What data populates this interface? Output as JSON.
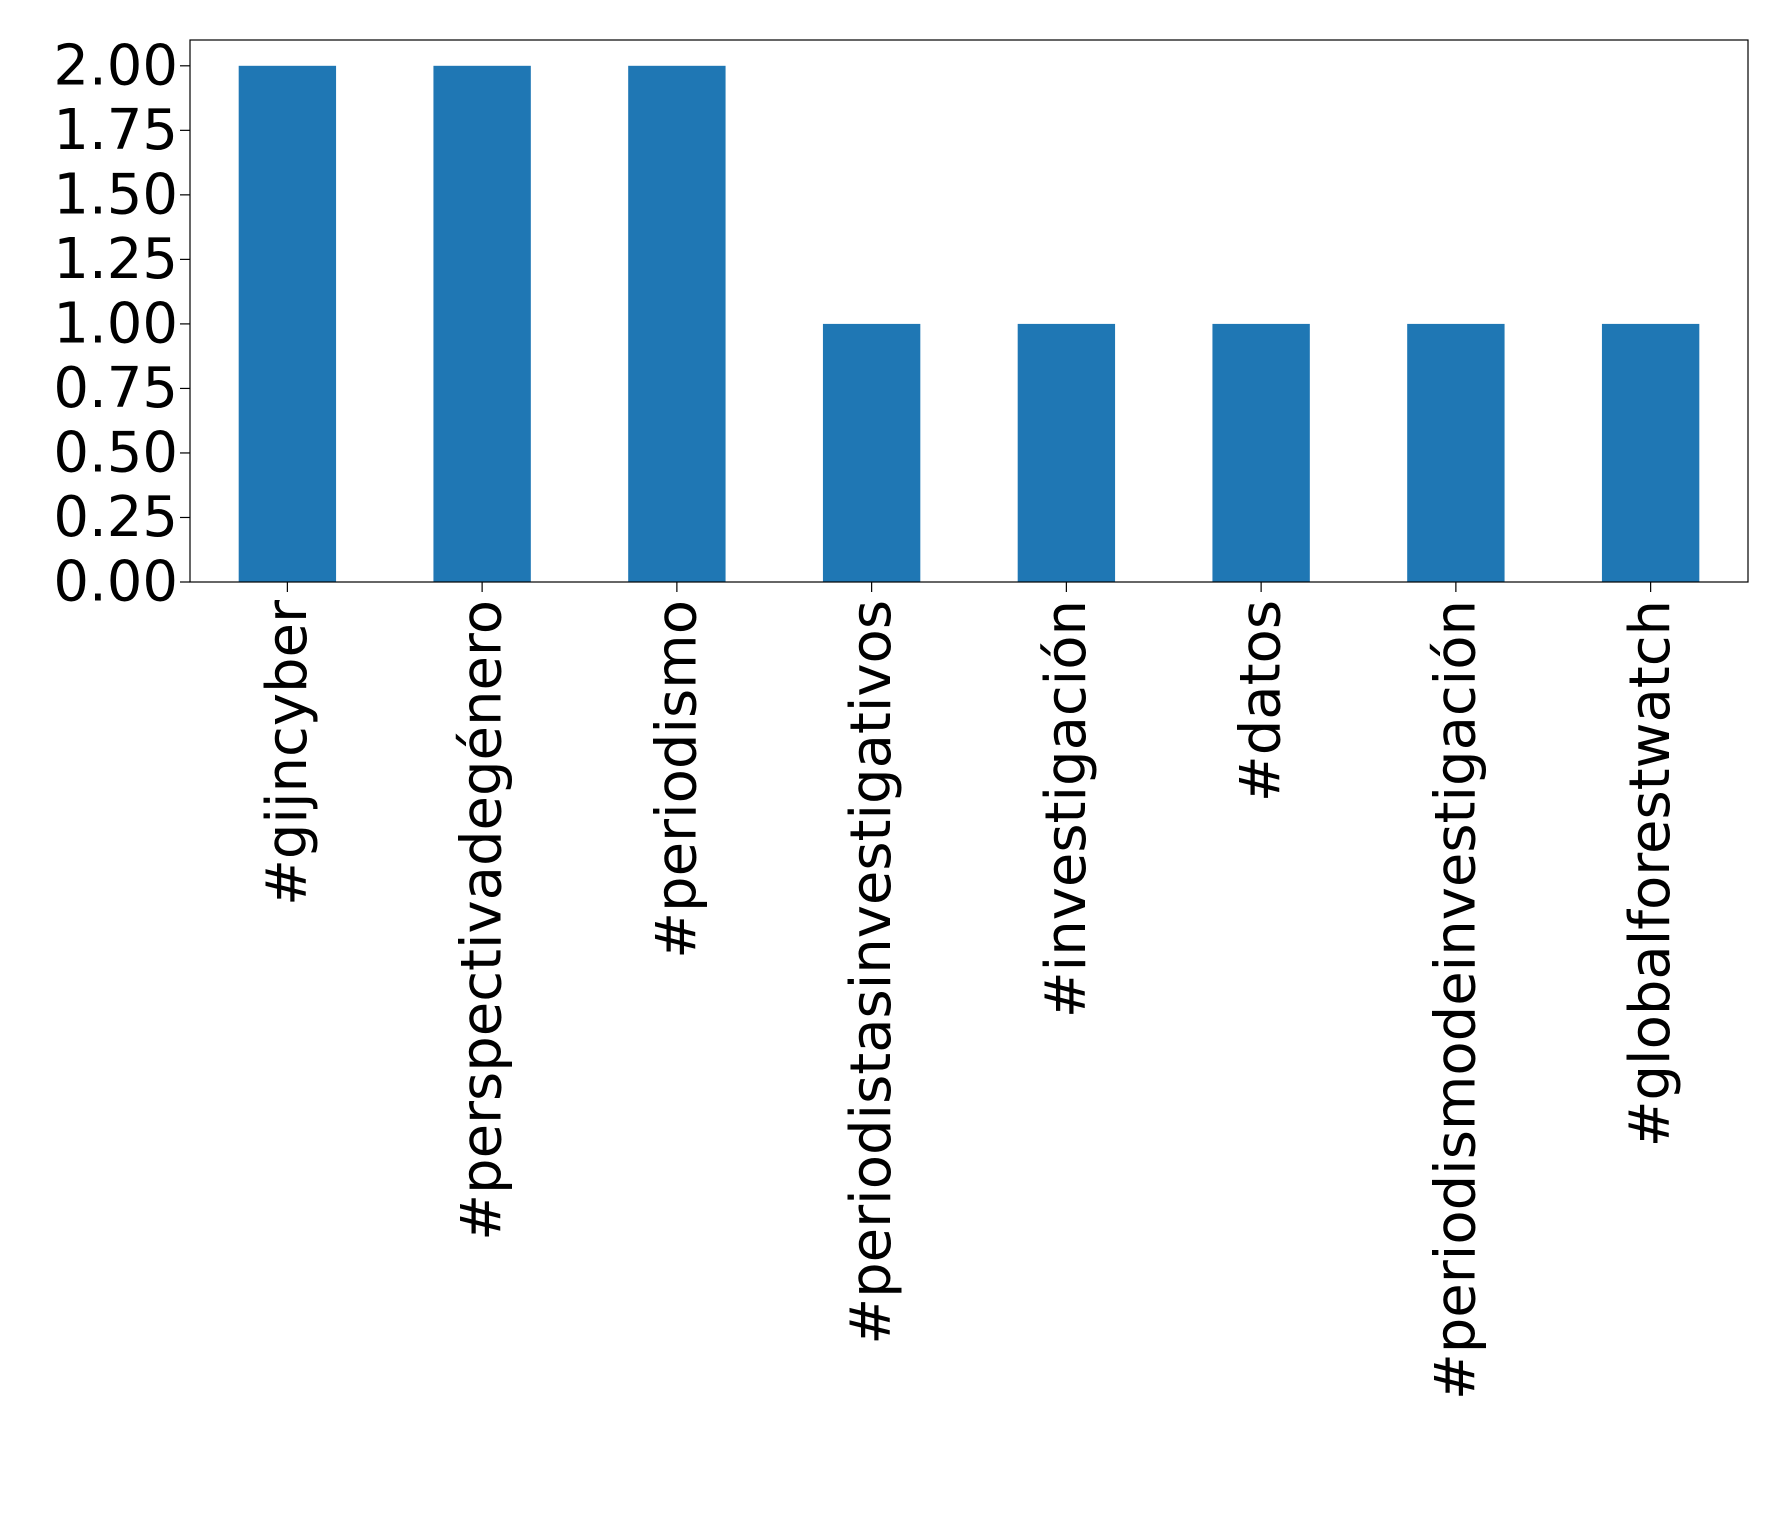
{
  "chart_data": {
    "type": "bar",
    "title": "",
    "xlabel": "",
    "ylabel": "",
    "categories": [
      "#gijncyber",
      "#perspectivadegénero",
      "#periodismo",
      "#periodistasinvestigativos",
      "#investigación",
      "#datos",
      "#periodismodeinvestigación",
      "#globalforestwatch"
    ],
    "values": [
      2,
      2,
      2,
      1,
      1,
      1,
      1,
      1
    ],
    "ylim": [
      0,
      2.1
    ],
    "yticks": [
      0,
      0.25,
      0.5,
      0.75,
      1.0,
      1.25,
      1.5,
      1.75,
      2.0
    ],
    "ytick_labels": [
      "0.00",
      "0.25",
      "0.50",
      "0.75",
      "1.00",
      "1.25",
      "1.50",
      "1.75",
      "2.00"
    ],
    "bar_color": "#1f77b4",
    "grid": false,
    "legend": "none"
  }
}
